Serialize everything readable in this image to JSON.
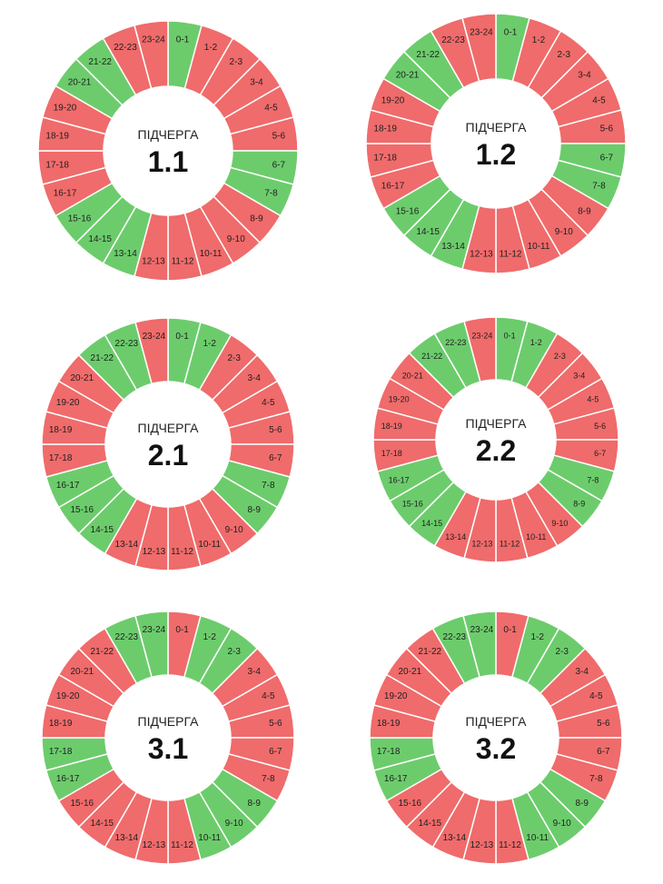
{
  "colors": {
    "on": "#6ccc6c",
    "off": "#f06b6b",
    "separator": "#ffffff"
  },
  "hours": [
    "0-1",
    "1-2",
    "2-3",
    "3-4",
    "4-5",
    "5-6",
    "6-7",
    "7-8",
    "8-9",
    "9-10",
    "10-11",
    "11-12",
    "12-13",
    "13-14",
    "14-15",
    "15-16",
    "16-17",
    "17-18",
    "18-19",
    "19-20",
    "20-21",
    "21-22",
    "22-23",
    "23-24"
  ],
  "queues": [
    {
      "caption": "ПІДЧЕРГА",
      "number": "1.1",
      "power": [
        1,
        0,
        0,
        0,
        0,
        0,
        1,
        1,
        0,
        0,
        0,
        0,
        0,
        1,
        1,
        1,
        0,
        0,
        0,
        0,
        1,
        1,
        0,
        0
      ]
    },
    {
      "caption": "ПІДЧЕРГА",
      "number": "1.2",
      "power": [
        1,
        0,
        0,
        0,
        0,
        0,
        1,
        1,
        0,
        0,
        0,
        0,
        0,
        1,
        1,
        1,
        0,
        0,
        0,
        0,
        1,
        1,
        0,
        0
      ]
    },
    {
      "caption": "ПІДЧЕРГА",
      "number": "2.1",
      "power": [
        1,
        1,
        0,
        0,
        0,
        0,
        0,
        1,
        1,
        0,
        0,
        0,
        0,
        0,
        1,
        1,
        1,
        0,
        0,
        0,
        0,
        1,
        1,
        0
      ]
    },
    {
      "caption": "ПІДЧЕРГА",
      "number": "2.2",
      "power": [
        1,
        1,
        0,
        0,
        0,
        0,
        0,
        1,
        1,
        0,
        0,
        0,
        0,
        0,
        1,
        1,
        1,
        0,
        0,
        0,
        0,
        1,
        1,
        0
      ]
    },
    {
      "caption": "ПІДЧЕРГА",
      "number": "3.1",
      "power": [
        0,
        1,
        1,
        0,
        0,
        0,
        0,
        0,
        1,
        1,
        1,
        0,
        0,
        0,
        0,
        0,
        1,
        1,
        0,
        0,
        0,
        0,
        1,
        1
      ]
    },
    {
      "caption": "ПІДЧЕРГА",
      "number": "3.2",
      "power": [
        0,
        1,
        1,
        0,
        0,
        0,
        0,
        0,
        1,
        1,
        1,
        0,
        0,
        0,
        0,
        0,
        1,
        1,
        0,
        0,
        0,
        0,
        1,
        1
      ]
    }
  ]
}
